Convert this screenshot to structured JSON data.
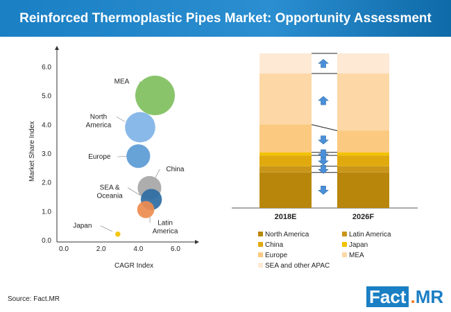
{
  "header": {
    "title": "Reinforced Thermoplastic Pipes Market: Opportunity Assessment"
  },
  "source": "Source: Fact.MR",
  "logo": {
    "part1": "Fact",
    "dot": ".",
    "part2": "MR"
  },
  "colors": {
    "header": "#1b7fc4",
    "arrow": "#4a90d9"
  },
  "chart_data": [
    {
      "type": "scatter",
      "subtype": "bubble",
      "xlabel": "CAGR Index",
      "ylabel": "Market Share Index",
      "xlim": [
        0,
        6
      ],
      "ylim": [
        0,
        6
      ],
      "xticks": [
        "0.0",
        "2.0",
        "4.0",
        "6.0"
      ],
      "yticks": [
        "0.0",
        "1.0",
        "2.0",
        "3.0",
        "4.0",
        "5.0",
        "6.0"
      ],
      "grid": false,
      "points": [
        {
          "label": "MEA",
          "x": 4.9,
          "y": 5.0,
          "size": 3.0,
          "color": "#7fbf5e"
        },
        {
          "label": "North America",
          "x": 4.1,
          "y": 3.9,
          "size": 2.3,
          "color": "#7fb3e6"
        },
        {
          "label": "Europe",
          "x": 4.0,
          "y": 2.9,
          "size": 1.8,
          "color": "#5b9bd5"
        },
        {
          "label": "China",
          "x": 4.6,
          "y": 1.8,
          "size": 1.8,
          "color": "#a6a6a6"
        },
        {
          "label": "SEA & Oceania",
          "x": 4.7,
          "y": 1.4,
          "size": 1.6,
          "color": "#2e6da4"
        },
        {
          "label": "Latin America",
          "x": 4.4,
          "y": 1.05,
          "size": 1.3,
          "color": "#ed8c4f"
        },
        {
          "label": "Japan",
          "x": 2.9,
          "y": 0.2,
          "size": 0.4,
          "color": "#f2c200"
        }
      ]
    },
    {
      "type": "bar",
      "subtype": "stacked-100",
      "categories": [
        "2018E",
        "2026F"
      ],
      "series": [
        {
          "name": "North America",
          "values": [
            23,
            23
          ],
          "color": "#b8860b"
        },
        {
          "name": "Latin America",
          "values": [
            4,
            4
          ],
          "color": "#c9961a"
        },
        {
          "name": "China",
          "values": [
            7,
            7
          ],
          "color": "#e0a90d"
        },
        {
          "name": "Japan",
          "values": [
            2,
            2
          ],
          "color": "#f2c200"
        },
        {
          "name": "Europe",
          "values": [
            18,
            14
          ],
          "color": "#fbc97f"
        },
        {
          "name": "MEA",
          "values": [
            33,
            37
          ],
          "color": "#fdd8a6"
        },
        {
          "name": "SEA and other APAC",
          "values": [
            13,
            13
          ],
          "color": "#fde9d4"
        }
      ],
      "changes": [
        "down",
        "down",
        "down",
        "down",
        "down",
        "up",
        "up"
      ],
      "legend": "bottom"
    }
  ]
}
